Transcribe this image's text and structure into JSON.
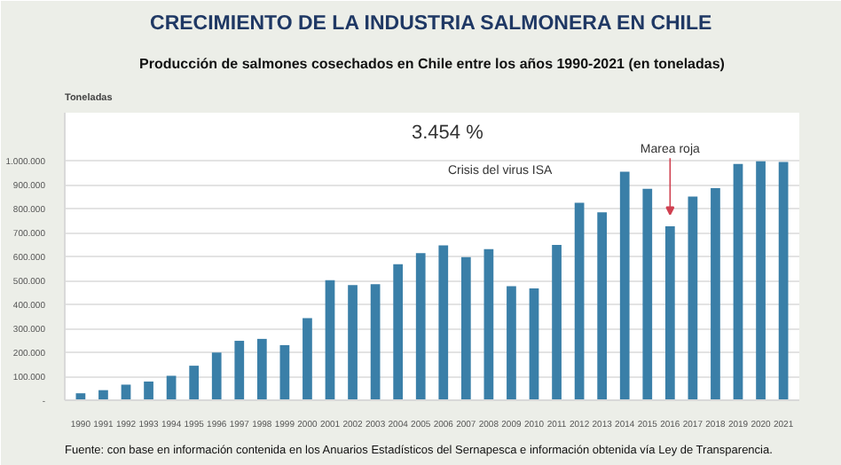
{
  "chart_data": {
    "type": "bar",
    "title": "CRECIMIENTO DE LA INDUSTRIA SALMONERA EN CHILE",
    "subtitle": "Producción de salmones cosechados en Chile entre los años 1990-2021 (en toneladas)",
    "ylabel": "Toneladas",
    "categories": [
      "1990",
      "1991",
      "1992",
      "1993",
      "1994",
      "1995",
      "1996",
      "1997",
      "1998",
      "1999",
      "2000",
      "2001",
      "2002",
      "2003",
      "2004",
      "2005",
      "2006",
      "2007",
      "2008",
      "2009",
      "2010",
      "2011",
      "2012",
      "2013",
      "2014",
      "2015",
      "2016",
      "2017",
      "2018",
      "2019",
      "2020",
      "2021"
    ],
    "values": [
      29000,
      42000,
      65000,
      78000,
      102000,
      144000,
      199000,
      248000,
      256000,
      230000,
      343000,
      501000,
      481000,
      484000,
      568000,
      614000,
      646000,
      597000,
      631000,
      476000,
      467000,
      648000,
      824000,
      784000,
      954000,
      882000,
      726000,
      850000,
      885000,
      986000,
      997000,
      994000
    ],
    "color": "#3a7fa8",
    "ylim": [
      0,
      1200000
    ],
    "yticks": [
      {
        "value": 0,
        "label": "-"
      },
      {
        "value": 100000,
        "label": "100.000"
      },
      {
        "value": 200000,
        "label": "200.000"
      },
      {
        "value": 300000,
        "label": "300.000"
      },
      {
        "value": 400000,
        "label": "400.000"
      },
      {
        "value": 500000,
        "label": "500.000"
      },
      {
        "value": 600000,
        "label": "600.000"
      },
      {
        "value": 700000,
        "label": "700.000"
      },
      {
        "value": 800000,
        "label": "800.000"
      },
      {
        "value": 900000,
        "label": "900.000"
      },
      {
        "value": 1000000,
        "label": "1.000.000"
      }
    ],
    "grid": "y",
    "annotations": [
      "3.454 %",
      "Crisis del virus ISA",
      "Marea roja",
      "Fuente: con base en información contenida en los Anuarios Estadísticos del Sernapesca e información obtenida vía Ley de Transparencia."
    ]
  }
}
